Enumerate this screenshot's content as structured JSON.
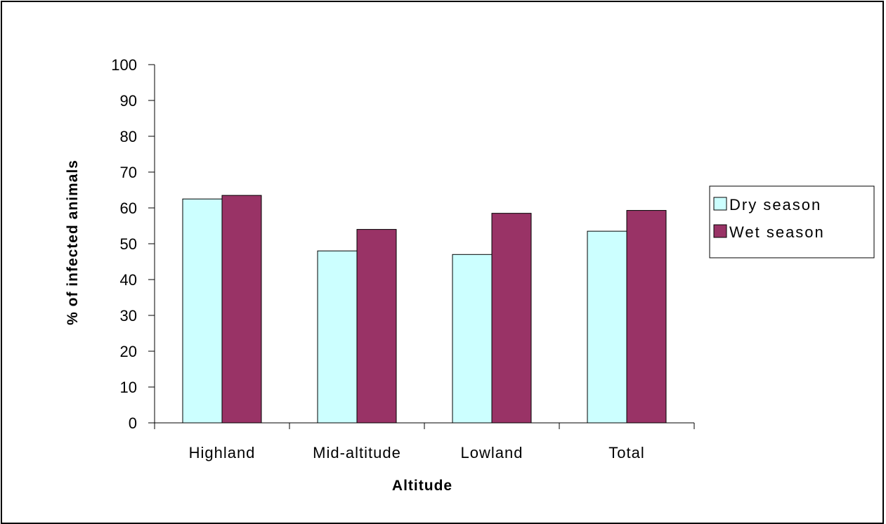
{
  "chart_data": {
    "type": "bar",
    "categories": [
      "Highland",
      "Mid-altitude",
      "Lowland",
      "Total"
    ],
    "series": [
      {
        "name": "Dry season",
        "values": [
          62.5,
          48,
          47,
          53.5
        ],
        "color": "#ccffff"
      },
      {
        "name": "Wet season",
        "values": [
          63.5,
          54,
          58.5,
          59.3
        ],
        "color": "#993366"
      }
    ],
    "title": "",
    "xlabel": "Altitude",
    "ylabel": "% of infected animals",
    "ylim": [
      0,
      100
    ],
    "yticks": [
      "0",
      "10",
      "20",
      "30",
      "40",
      "50",
      "60",
      "70",
      "80",
      "90",
      "100"
    ],
    "grid": false,
    "legend_position": "right"
  }
}
